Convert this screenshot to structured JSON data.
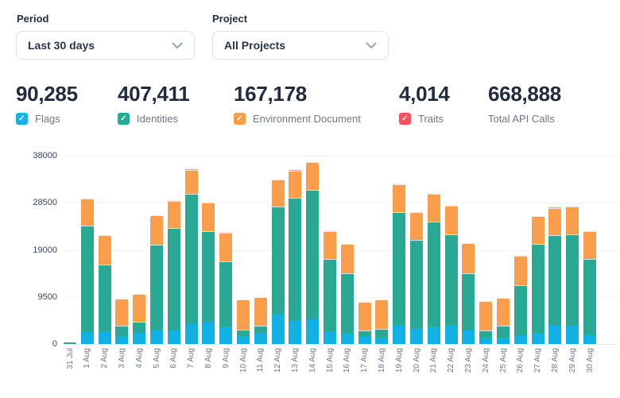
{
  "filters": {
    "period": {
      "label": "Period",
      "value": "Last 30 days"
    },
    "project": {
      "label": "Project",
      "value": "All Projects"
    }
  },
  "stats": [
    {
      "value": "90,285",
      "label": "Flags",
      "has_checkbox": true,
      "checked": true,
      "color": "#1ab1e5"
    },
    {
      "value": "407,411",
      "label": "Identities",
      "has_checkbox": true,
      "checked": true,
      "color": "#29a894"
    },
    {
      "value": "167,178",
      "label": "Environment Document",
      "has_checkbox": true,
      "checked": true,
      "color": "#fb9e4b"
    },
    {
      "value": "4,014",
      "label": "Traits",
      "has_checkbox": true,
      "checked": true,
      "color": "#f1545f"
    },
    {
      "value": "668,888",
      "label": "Total API Calls",
      "has_checkbox": false,
      "checked": false,
      "color": null
    }
  ],
  "chart_data": {
    "type": "bar",
    "stacked": true,
    "title": "",
    "xlabel": "",
    "ylabel": "",
    "ylim": [
      0,
      38000
    ],
    "yticks": [
      0,
      9500,
      19000,
      28500,
      38000
    ],
    "grid": true,
    "legend_position": "none",
    "categories": [
      "31 Jul",
      "1 Aug",
      "2 Aug",
      "3 Aug",
      "4 Aug",
      "5 Aug",
      "6 Aug",
      "7 Aug",
      "8 Aug",
      "9 Aug",
      "10 Aug",
      "11 Aug",
      "12 Aug",
      "13 Aug",
      "14 Aug",
      "15 Aug",
      "16 Aug",
      "17 Aug",
      "18 Aug",
      "19 Aug",
      "20 Aug",
      "21 Aug",
      "22 Aug",
      "23 Aug",
      "24 Aug",
      "25 Aug",
      "26 Aug",
      "27 Aug",
      "28 Aug",
      "29 Aug",
      "30 Aug"
    ],
    "series": [
      {
        "name": "Flags",
        "color": "#12b1e4",
        "values": [
          0,
          2400,
          2550,
          1600,
          2250,
          2900,
          2700,
          4000,
          4300,
          3600,
          1600,
          2030,
          6150,
          4650,
          4900,
          2570,
          2250,
          1440,
          1340,
          3850,
          3050,
          3580,
          3850,
          2670,
          1340,
          1340,
          1770,
          2300,
          3700,
          3750,
          1930
        ]
      },
      {
        "name": "Identities",
        "color": "#29a894",
        "values": [
          250,
          21500,
          13450,
          2050,
          2300,
          17100,
          20700,
          26300,
          18540,
          13000,
          1340,
          1720,
          21650,
          24850,
          26200,
          14530,
          12030,
          1340,
          1760,
          22750,
          17950,
          21120,
          18350,
          11610,
          1440,
          2300,
          10110,
          17900,
          18200,
          18400,
          15300
        ]
      },
      {
        "name": "Environment Document",
        "color": "#fb9e4b",
        "values": [
          0,
          5400,
          5900,
          5550,
          5600,
          6000,
          5500,
          4900,
          5700,
          5800,
          5990,
          5720,
          5400,
          5500,
          5700,
          5740,
          5920,
          5780,
          5900,
          5600,
          5640,
          5600,
          5700,
          6050,
          5880,
          5720,
          5940,
          5600,
          5500,
          5560,
          5610
        ]
      },
      {
        "name": "Traits",
        "color": "#f9a0a8",
        "values": [
          0,
          0,
          0,
          0,
          0,
          0,
          200,
          300,
          200,
          200,
          0,
          0,
          0,
          200,
          0,
          160,
          0,
          0,
          0,
          200,
          0,
          200,
          200,
          0,
          0,
          0,
          100,
          0,
          300,
          240,
          0
        ]
      }
    ]
  }
}
